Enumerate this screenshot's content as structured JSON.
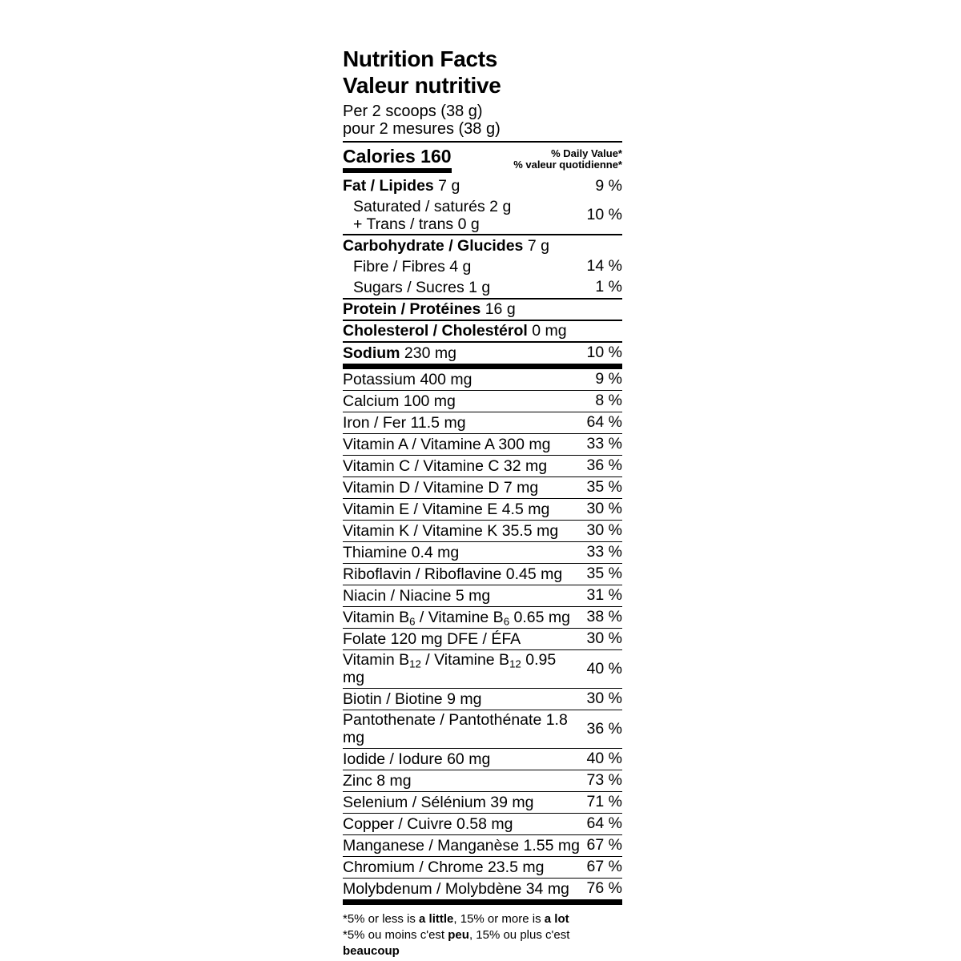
{
  "label": {
    "title_en": "Nutrition Facts",
    "title_fr": "Valeur nutritive",
    "serving_en": "Per 2 scoops (38 g)",
    "serving_fr": "pour 2 mesures (38 g)",
    "calories_label": "Calories",
    "calories_value": "160",
    "dv_header_en": "% Daily Value*",
    "dv_header_fr": "% valeur quotidienne*"
  },
  "rows": [
    {
      "id": "fat",
      "lines": [
        [
          {
            "t": "Fat / Lipides",
            "b": true
          },
          {
            "t": " 7 g"
          }
        ]
      ],
      "pct": "9 %",
      "indent": false,
      "sep": "none"
    },
    {
      "id": "saturated-trans",
      "lines": [
        [
          {
            "t": "Saturated / saturés 2 g"
          }
        ],
        [
          {
            "t": "+ Trans / trans 0 g"
          }
        ]
      ],
      "pct": "10 %",
      "indent": true,
      "sep": "med"
    },
    {
      "id": "carbohydrate",
      "lines": [
        [
          {
            "t": "Carbohydrate / Glucides",
            "b": true
          },
          {
            "t": " 7 g"
          }
        ]
      ],
      "pct": "",
      "indent": false,
      "sep": "none"
    },
    {
      "id": "fibre",
      "lines": [
        [
          {
            "t": "Fibre / Fibres 4 g"
          }
        ]
      ],
      "pct": "14 %",
      "indent": true,
      "sep": "none"
    },
    {
      "id": "sugars",
      "lines": [
        [
          {
            "t": "Sugars / Sucres 1 g"
          }
        ]
      ],
      "pct": "1 %",
      "indent": true,
      "sep": "med"
    },
    {
      "id": "protein",
      "lines": [
        [
          {
            "t": "Protein / Protéines",
            "b": true
          },
          {
            "t": " 16 g"
          }
        ]
      ],
      "pct": "",
      "indent": false,
      "sep": "med"
    },
    {
      "id": "cholesterol",
      "lines": [
        [
          {
            "t": "Cholesterol / Cholestérol",
            "b": true
          },
          {
            "t": " 0 mg"
          }
        ]
      ],
      "pct": "",
      "indent": false,
      "sep": "med"
    },
    {
      "id": "sodium",
      "lines": [
        [
          {
            "t": "Sodium",
            "b": true
          },
          {
            "t": " 230 mg"
          }
        ]
      ],
      "pct": "10 %",
      "indent": false,
      "sep": "thick"
    },
    {
      "id": "potassium",
      "micro": true,
      "lines": [
        [
          {
            "t": "Potassium 400 mg"
          }
        ]
      ],
      "pct": "9 %",
      "indent": false,
      "sep": "thin"
    },
    {
      "id": "calcium",
      "micro": true,
      "lines": [
        [
          {
            "t": "Calcium 100 mg"
          }
        ]
      ],
      "pct": "8 %",
      "indent": false,
      "sep": "thin"
    },
    {
      "id": "iron",
      "micro": true,
      "lines": [
        [
          {
            "t": "Iron / Fer 11.5 mg"
          }
        ]
      ],
      "pct": "64 %",
      "indent": false,
      "sep": "thin"
    },
    {
      "id": "vitamin-a",
      "micro": true,
      "lines": [
        [
          {
            "t": "Vitamin A / Vitamine A 300 mg"
          }
        ]
      ],
      "pct": "33 %",
      "indent": false,
      "sep": "thin"
    },
    {
      "id": "vitamin-c",
      "micro": true,
      "lines": [
        [
          {
            "t": "Vitamin C / Vitamine C 32 mg"
          }
        ]
      ],
      "pct": "36 %",
      "indent": false,
      "sep": "thin"
    },
    {
      "id": "vitamin-d",
      "micro": true,
      "lines": [
        [
          {
            "t": "Vitamin D / Vitamine D 7 mg"
          }
        ]
      ],
      "pct": "35 %",
      "indent": false,
      "sep": "thin"
    },
    {
      "id": "vitamin-e",
      "micro": true,
      "lines": [
        [
          {
            "t": "Vitamin E / Vitamine E 4.5 mg"
          }
        ]
      ],
      "pct": "30 %",
      "indent": false,
      "sep": "thin"
    },
    {
      "id": "vitamin-k",
      "micro": true,
      "lines": [
        [
          {
            "t": "Vitamin K / Vitamine K 35.5 mg"
          }
        ]
      ],
      "pct": "30 %",
      "indent": false,
      "sep": "thin"
    },
    {
      "id": "thiamine",
      "micro": true,
      "lines": [
        [
          {
            "t": "Thiamine 0.4 mg"
          }
        ]
      ],
      "pct": "33 %",
      "indent": false,
      "sep": "thin"
    },
    {
      "id": "riboflavin",
      "micro": true,
      "lines": [
        [
          {
            "t": "Riboflavin / Riboflavine 0.45 mg"
          }
        ]
      ],
      "pct": "35 %",
      "indent": false,
      "sep": "thin"
    },
    {
      "id": "niacin",
      "micro": true,
      "lines": [
        [
          {
            "t": "Niacin / Niacine 5 mg"
          }
        ]
      ],
      "pct": "31 %",
      "indent": false,
      "sep": "thin"
    },
    {
      "id": "vitamin-b6",
      "micro": true,
      "lines": [
        [
          {
            "t": "Vitamin B"
          },
          {
            "t": "6",
            "sub": true
          },
          {
            "t": " / Vitamine B"
          },
          {
            "t": "6",
            "sub": true
          },
          {
            "t": " 0.65 mg"
          }
        ]
      ],
      "pct": "38 %",
      "indent": false,
      "sep": "thin"
    },
    {
      "id": "folate",
      "micro": true,
      "lines": [
        [
          {
            "t": "Folate 120 mg DFE / ÉFA"
          }
        ]
      ],
      "pct": "30 %",
      "indent": false,
      "sep": "thin"
    },
    {
      "id": "vitamin-b12",
      "micro": true,
      "lines": [
        [
          {
            "t": "Vitamin B"
          },
          {
            "t": "12",
            "sub": true
          },
          {
            "t": " / Vitamine B"
          },
          {
            "t": "12",
            "sub": true
          },
          {
            "t": " 0.95 mg"
          }
        ]
      ],
      "pct": "40 %",
      "indent": false,
      "sep": "thin"
    },
    {
      "id": "biotin",
      "micro": true,
      "lines": [
        [
          {
            "t": "Biotin / Biotine 9 mg"
          }
        ]
      ],
      "pct": "30 %",
      "indent": false,
      "sep": "thin"
    },
    {
      "id": "pantothenate",
      "micro": true,
      "lines": [
        [
          {
            "t": "Pantothenate / Pantothénate 1.8 mg"
          }
        ]
      ],
      "pct": "36 %",
      "indent": false,
      "sep": "thin"
    },
    {
      "id": "iodide",
      "micro": true,
      "lines": [
        [
          {
            "t": "Iodide / Iodure 60 mg"
          }
        ]
      ],
      "pct": "40 %",
      "indent": false,
      "sep": "thin"
    },
    {
      "id": "zinc",
      "micro": true,
      "lines": [
        [
          {
            "t": "Zinc 8 mg"
          }
        ]
      ],
      "pct": "73 %",
      "indent": false,
      "sep": "thin"
    },
    {
      "id": "selenium",
      "micro": true,
      "lines": [
        [
          {
            "t": "Selenium / Sélénium 39 mg"
          }
        ]
      ],
      "pct": "71 %",
      "indent": false,
      "sep": "thin"
    },
    {
      "id": "copper",
      "micro": true,
      "lines": [
        [
          {
            "t": "Copper / Cuivre 0.58 mg"
          }
        ]
      ],
      "pct": "64 %",
      "indent": false,
      "sep": "thin"
    },
    {
      "id": "manganese",
      "micro": true,
      "lines": [
        [
          {
            "t": "Manganese / Manganèse 1.55 mg"
          }
        ]
      ],
      "pct": "67 %",
      "indent": false,
      "sep": "thin"
    },
    {
      "id": "chromium",
      "micro": true,
      "lines": [
        [
          {
            "t": "Chromium / Chrome 23.5 mg"
          }
        ]
      ],
      "pct": "67 %",
      "indent": false,
      "sep": "thin"
    },
    {
      "id": "molybdenum",
      "micro": true,
      "lines": [
        [
          {
            "t": "Molybdenum / Molybdène 34 mg"
          }
        ]
      ],
      "pct": "76 %",
      "indent": false,
      "sep": "thick"
    }
  ],
  "footnotes": [
    {
      "id": "footnote-en",
      "segments": [
        {
          "t": "*5% or less is "
        },
        {
          "t": "a little",
          "b": true
        },
        {
          "t": ", 15% or more is "
        },
        {
          "t": "a lot",
          "b": true
        }
      ]
    },
    {
      "id": "footnote-fr",
      "segments": [
        {
          "t": "*5% ou moins c'est "
        },
        {
          "t": "peu",
          "b": true
        },
        {
          "t": ", 15% ou plus c'est "
        },
        {
          "t": "beaucoup",
          "b": true
        }
      ]
    }
  ]
}
